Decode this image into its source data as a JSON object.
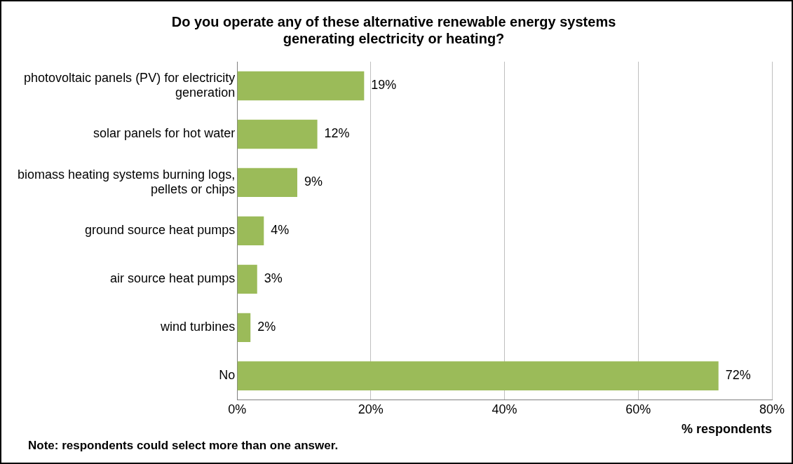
{
  "chart_data": {
    "type": "bar",
    "orientation": "horizontal",
    "title": "Do you operate any of these alternative renewable energy systems generating electricity or heating?",
    "categories": [
      "photovoltaic panels (PV) for electricity generation",
      "solar panels for hot water",
      "biomass heating systems burning logs, pellets or chips",
      "ground source heat pumps",
      "air source heat pumps",
      "wind turbines",
      "No"
    ],
    "values": [
      19,
      12,
      9,
      4,
      3,
      2,
      72
    ],
    "value_labels": [
      "19%",
      "12%",
      "9%",
      "4%",
      "3%",
      "2%",
      "72%"
    ],
    "color": "#9bbb59",
    "xlim": [
      0,
      80
    ],
    "xticks": [
      {
        "value": 0,
        "label": "0%"
      },
      {
        "value": 20,
        "label": "20%"
      },
      {
        "value": 40,
        "label": "40%"
      },
      {
        "value": 60,
        "label": "60%"
      },
      {
        "value": 80,
        "label": "80%"
      }
    ],
    "xlabel": "% respondents",
    "grid": "x",
    "legend": false,
    "annotations": [
      "Note: respondents could select more than one answer."
    ]
  }
}
